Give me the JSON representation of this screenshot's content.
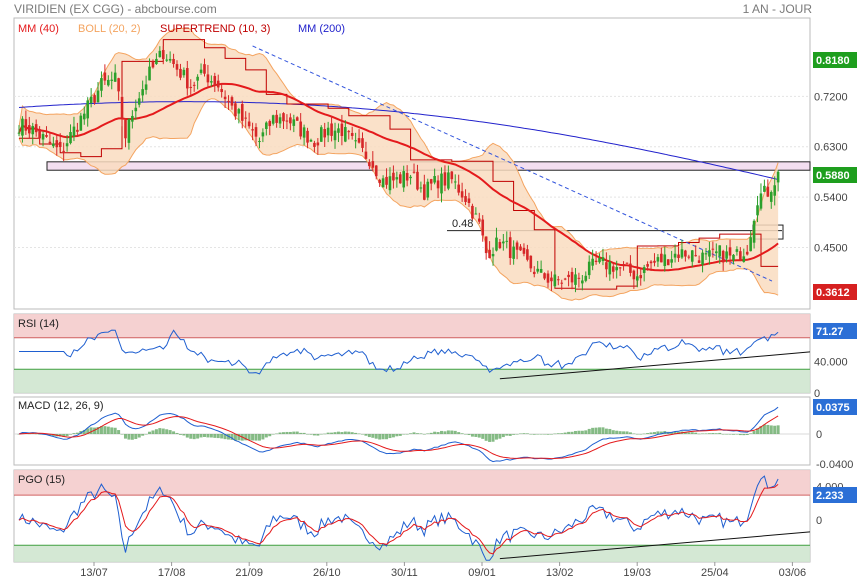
{
  "header": {
    "title": "VIRIDIEN (EX CGG) - abcbourse.com",
    "period": "1 AN - JOUR"
  },
  "colors": {
    "up": "#2ca02c",
    "down": "#d62728",
    "mm40": "#e41a1c",
    "boll": "#f4a460",
    "boll_fill": "#f9dcc0",
    "supertrend": "#c00000",
    "mm200": "#2222cc",
    "badge_green": "#1e9e1e",
    "badge_red": "#d62020",
    "badge_blue": "#2b6fd6",
    "zone_red": "#f4cccc",
    "zone_green": "#cfe5cf",
    "line_blue": "#1f5fd0"
  },
  "chart_data": [
    {
      "type": "candlestick",
      "legend": [
        {
          "label": "MM (40)",
          "color": "#e41a1c"
        },
        {
          "label": "BOLL (20, 2)",
          "color": "#f4a460"
        },
        {
          "label": "SUPERTREND (10, 3)",
          "color": "#c00000"
        },
        {
          "label": "MM (200)",
          "color": "#2222cc"
        }
      ],
      "ylim": [
        0.34,
        0.86
      ],
      "y_ticks": [
        0.72,
        0.63,
        0.54,
        0.45
      ],
      "y_tick_labels": [
        "0.7200",
        "0.6300",
        "0.5400",
        "0.4500"
      ],
      "x_ticks": [
        "13/07",
        "17/08",
        "21/09",
        "26/10",
        "30/11",
        "09/01",
        "13/02",
        "19/03",
        "25/04",
        "03/06"
      ],
      "last_price": "0.5880",
      "high_badge": "0.8180",
      "low_badge": "0.3612",
      "level_label": "0.48",
      "levels": [
        0.48
      ],
      "resistance_zone": [
        0.588,
        0.603
      ],
      "close_anchors": [
        [
          0,
          0.67
        ],
        [
          4,
          0.66
        ],
        [
          8,
          0.64
        ],
        [
          12,
          0.62
        ],
        [
          16,
          0.66
        ],
        [
          20,
          0.7
        ],
        [
          24,
          0.74
        ],
        [
          28,
          0.75
        ],
        [
          31,
          0.65
        ],
        [
          34,
          0.71
        ],
        [
          38,
          0.76
        ],
        [
          42,
          0.8
        ],
        [
          46,
          0.77
        ],
        [
          50,
          0.74
        ],
        [
          54,
          0.76
        ],
        [
          58,
          0.74
        ],
        [
          62,
          0.7
        ],
        [
          66,
          0.67
        ],
        [
          70,
          0.64
        ],
        [
          74,
          0.68
        ],
        [
          78,
          0.68
        ],
        [
          82,
          0.66
        ],
        [
          86,
          0.64
        ],
        [
          90,
          0.66
        ],
        [
          94,
          0.66
        ],
        [
          98,
          0.63
        ],
        [
          102,
          0.61
        ],
        [
          106,
          0.57
        ],
        [
          110,
          0.57
        ],
        [
          114,
          0.58
        ],
        [
          118,
          0.55
        ],
        [
          122,
          0.57
        ],
        [
          126,
          0.57
        ],
        [
          130,
          0.54
        ],
        [
          134,
          0.49
        ],
        [
          136,
          0.44
        ],
        [
          140,
          0.46
        ],
        [
          144,
          0.44
        ],
        [
          148,
          0.42
        ],
        [
          152,
          0.4
        ],
        [
          156,
          0.39
        ],
        [
          160,
          0.39
        ],
        [
          164,
          0.4
        ],
        [
          168,
          0.42
        ],
        [
          172,
          0.42
        ],
        [
          176,
          0.41
        ],
        [
          180,
          0.4
        ],
        [
          184,
          0.42
        ],
        [
          188,
          0.43
        ],
        [
          192,
          0.44
        ],
        [
          196,
          0.44
        ],
        [
          200,
          0.43
        ],
        [
          204,
          0.44
        ],
        [
          208,
          0.43
        ],
        [
          212,
          0.45
        ],
        [
          215,
          0.54
        ],
        [
          218,
          0.55
        ],
        [
          221,
          0.58
        ]
      ]
    },
    {
      "type": "line",
      "name": "RSI (14)",
      "value_badge": "71.27",
      "ylim": [
        0,
        100
      ],
      "upper": 70,
      "lower": 30,
      "y_ticks": [
        40,
        0
      ],
      "y_tick_labels": [
        "40.000",
        "0"
      ]
    },
    {
      "type": "line",
      "name": "MACD (12, 26, 9)",
      "value_badge": "0.0375",
      "y_ticks": [
        0,
        -0.04
      ],
      "y_tick_labels": [
        "0",
        "-0.0400"
      ]
    },
    {
      "type": "line",
      "name": "PGO (15)",
      "value_badge": "2.233",
      "ylim": [
        -5,
        6
      ],
      "upper": 3,
      "lower": -3,
      "y_ticks": [
        4,
        0
      ],
      "y_tick_labels": [
        "4.000",
        "0"
      ]
    }
  ]
}
